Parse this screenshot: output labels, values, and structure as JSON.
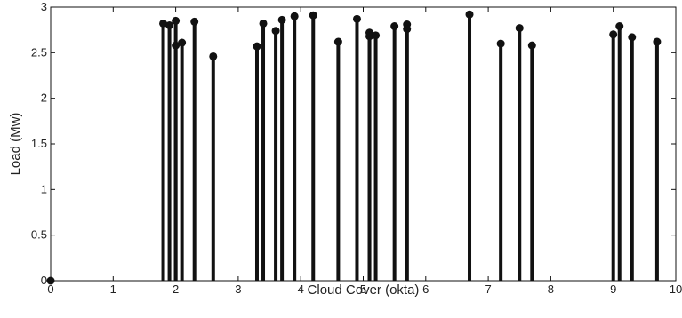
{
  "chart_data": {
    "type": "stem",
    "xlabel": "Cloud Cover (okta)",
    "ylabel": "Load (Mw)",
    "xlim": [
      0,
      10
    ],
    "ylim": [
      0,
      3
    ],
    "xticks": [
      0,
      1,
      2,
      3,
      4,
      5,
      6,
      7,
      8,
      9,
      10
    ],
    "xtick_labels": [
      "0",
      "1",
      "2",
      "3",
      "4",
      "5",
      "6",
      "7",
      "8",
      "9",
      "10"
    ],
    "yticks": [
      0,
      0.5,
      1,
      1.5,
      2,
      2.5,
      3
    ],
    "ytick_labels": [
      "0",
      "0.5",
      "1",
      "1.5",
      "2",
      "2.5",
      "3"
    ],
    "grid": false,
    "series": [
      {
        "x": [
          0,
          1.8,
          1.9,
          2.0,
          2.0,
          2.1,
          2.3,
          2.6,
          3.3,
          3.4,
          3.6,
          3.7,
          3.9,
          4.2,
          4.6,
          4.9,
          5.1,
          5.1,
          5.2,
          5.5,
          5.7,
          5.7,
          6.7,
          7.2,
          7.5,
          7.7,
          9.0,
          9.1,
          9.3,
          9.7
        ],
        "y": [
          0,
          2.82,
          2.8,
          2.85,
          2.58,
          2.61,
          2.84,
          2.46,
          2.57,
          2.82,
          2.74,
          2.86,
          2.9,
          2.91,
          2.62,
          2.87,
          2.72,
          2.68,
          2.69,
          2.79,
          2.81,
          2.76,
          2.92,
          2.6,
          2.77,
          2.58,
          2.7,
          2.79,
          2.67,
          2.62
        ]
      }
    ],
    "colors": {
      "stem": "#111111",
      "axis": "#111111"
    }
  }
}
